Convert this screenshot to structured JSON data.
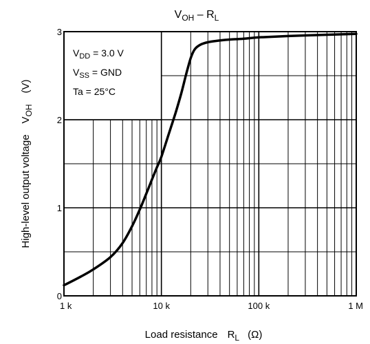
{
  "chart_data": {
    "type": "line",
    "title": {
      "main": "V",
      "sub": "OH",
      "sep": " – ",
      "main2": "R",
      "sub2": "L"
    },
    "xlabel": {
      "text": "Load resistance",
      "sym": "R",
      "sub": "L",
      "unit": "(Ω)"
    },
    "ylabel": {
      "text": "High-level output voltage",
      "sym": "V",
      "sub": "OH",
      "unit": "(V)"
    },
    "x_scale": "log",
    "xlim": [
      1000,
      1000000
    ],
    "ylim": [
      0,
      3
    ],
    "x_ticks": [
      {
        "value": 1000,
        "label": "1 k"
      },
      {
        "value": 10000,
        "label": "10 k"
      },
      {
        "value": 100000,
        "label": "100 k"
      },
      {
        "value": 1000000,
        "label": "1 M"
      }
    ],
    "y_ticks": [
      {
        "value": 0,
        "label": "0"
      },
      {
        "value": 1,
        "label": "1"
      },
      {
        "value": 2,
        "label": "2"
      },
      {
        "value": 3,
        "label": "3"
      }
    ],
    "grid": true,
    "conditions": [
      {
        "main": "V",
        "sub": "DD",
        "rest": " = 3.0 V"
      },
      {
        "main": "V",
        "sub": "SS",
        "rest": " = GND"
      },
      {
        "main": "Ta = 25°C",
        "sub": "",
        "rest": ""
      }
    ],
    "series": [
      {
        "color": "#000000",
        "x": [
          1000,
          1500,
          2000,
          3000,
          4000,
          5000,
          6000,
          7000,
          8000,
          9000,
          10000,
          12000,
          14000,
          16000,
          18000,
          20000,
          22000,
          25000,
          30000,
          40000,
          50000,
          70000,
          100000,
          200000,
          500000,
          1000000
        ],
        "y": [
          0.12,
          0.22,
          0.3,
          0.44,
          0.6,
          0.79,
          0.98,
          1.16,
          1.32,
          1.46,
          1.58,
          1.85,
          2.08,
          2.3,
          2.52,
          2.7,
          2.8,
          2.85,
          2.88,
          2.9,
          2.91,
          2.92,
          2.935,
          2.95,
          2.965,
          2.975
        ]
      }
    ]
  }
}
